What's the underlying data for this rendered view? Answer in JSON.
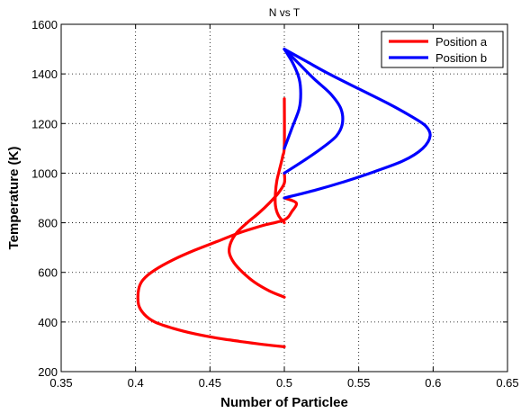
{
  "chart_data": {
    "type": "line",
    "title": "N vs T",
    "xlabel": "Number of Particlee",
    "ylabel": "Temperature (K)",
    "xlim": [
      0.35,
      0.65
    ],
    "ylim": [
      200,
      1600
    ],
    "xticks": [
      0.35,
      0.4,
      0.45,
      0.5,
      0.55,
      0.6,
      0.65
    ],
    "yticks": [
      200,
      400,
      600,
      800,
      1000,
      1200,
      1400,
      1600
    ],
    "xtick_labels": [
      "0.35",
      "0.4",
      "0.45",
      "0.5",
      "0.55",
      "0.6",
      "0.65"
    ],
    "ytick_labels": [
      "200",
      "400",
      "600",
      "800",
      "1000",
      "1200",
      "1400",
      "1600"
    ],
    "grid": true,
    "legend_position": "top-right",
    "series": [
      {
        "name": "Position a",
        "color": "#ff0000",
        "curves": [
          [
            [
              0.5,
              300
            ],
            [
              0.485,
              310
            ],
            [
              0.47,
              322
            ],
            [
              0.455,
              335
            ],
            [
              0.44,
              352
            ],
            [
              0.425,
              375
            ],
            [
              0.413,
              400
            ],
            [
              0.406,
              430
            ],
            [
              0.402,
              470
            ],
            [
              0.402,
              530
            ],
            [
              0.405,
              570
            ],
            [
              0.413,
              610
            ],
            [
              0.425,
              650
            ],
            [
              0.44,
              690
            ],
            [
              0.455,
              725
            ],
            [
              0.47,
              760
            ],
            [
              0.485,
              788
            ],
            [
              0.5,
              812
            ],
            [
              0.505,
              845
            ],
            [
              0.508,
              880
            ],
            [
              0.5,
              900
            ]
          ],
          [
            [
              0.5,
              500
            ],
            [
              0.49,
              525
            ],
            [
              0.48,
              560
            ],
            [
              0.472,
              600
            ],
            [
              0.466,
              640
            ],
            [
              0.463,
              680
            ],
            [
              0.464,
              720
            ],
            [
              0.468,
              760
            ],
            [
              0.475,
              800
            ],
            [
              0.483,
              840
            ],
            [
              0.49,
              880
            ],
            [
              0.496,
              920
            ],
            [
              0.5,
              960
            ],
            [
              0.5,
              1000
            ]
          ],
          [
            [
              0.5,
              800
            ],
            [
              0.496,
              830
            ],
            [
              0.494,
              870
            ],
            [
              0.494,
              920
            ],
            [
              0.495,
              970
            ],
            [
              0.497,
              1020
            ],
            [
              0.499,
              1070
            ],
            [
              0.5,
              1110
            ],
            [
              0.5,
              1300
            ]
          ]
        ]
      },
      {
        "name": "Position b",
        "color": "#0000ff",
        "curves": [
          [
            [
              0.5,
              900
            ],
            [
              0.52,
              930
            ],
            [
              0.54,
              965
            ],
            [
              0.56,
              1005
            ],
            [
              0.58,
              1050
            ],
            [
              0.593,
              1100
            ],
            [
              0.598,
              1150
            ],
            [
              0.595,
              1190
            ],
            [
              0.585,
              1230
            ],
            [
              0.57,
              1280
            ],
            [
              0.55,
              1340
            ],
            [
              0.53,
              1400
            ],
            [
              0.515,
              1450
            ],
            [
              0.5,
              1500
            ]
          ],
          [
            [
              0.5,
              1000
            ],
            [
              0.513,
              1050
            ],
            [
              0.525,
              1100
            ],
            [
              0.535,
              1150
            ],
            [
              0.539,
              1200
            ],
            [
              0.538,
              1260
            ],
            [
              0.531,
              1320
            ],
            [
              0.52,
              1380
            ],
            [
              0.51,
              1440
            ],
            [
              0.5,
              1500
            ]
          ],
          [
            [
              0.5,
              1100
            ],
            [
              0.505,
              1180
            ],
            [
              0.51,
              1260
            ],
            [
              0.511,
              1320
            ],
            [
              0.51,
              1380
            ],
            [
              0.506,
              1440
            ],
            [
              0.5,
              1500
            ]
          ]
        ]
      }
    ]
  }
}
